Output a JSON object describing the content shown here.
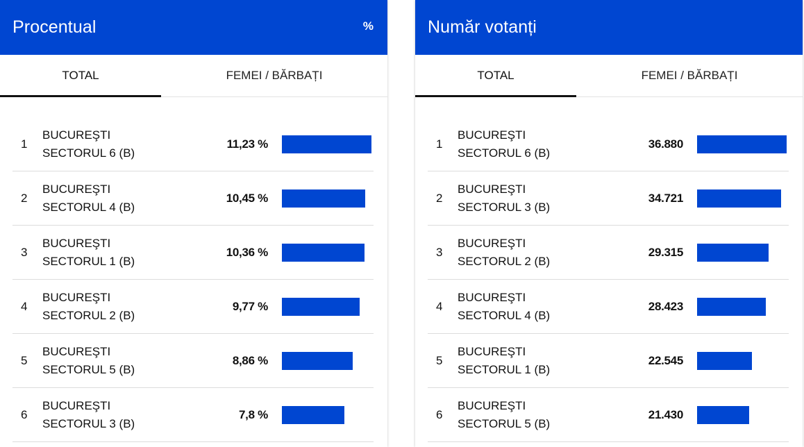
{
  "colors": {
    "accent": "#0046d1"
  },
  "panels": [
    {
      "title": "Procentual",
      "unit": "%",
      "tabs": [
        {
          "label": "TOTAL",
          "active": true
        },
        {
          "label": "FEMEI / BĂRBAȚI",
          "active": false
        }
      ],
      "max": 11.23,
      "rows": [
        {
          "rank": "1",
          "line1": "BUCUREŞTI",
          "line2": "SECTORUL 6 (B)",
          "value": "11,23 %",
          "num": 11.23
        },
        {
          "rank": "2",
          "line1": "BUCUREŞTI",
          "line2": "SECTORUL 4 (B)",
          "value": "10,45 %",
          "num": 10.45
        },
        {
          "rank": "3",
          "line1": "BUCUREŞTI",
          "line2": "SECTORUL 1 (B)",
          "value": "10,36 %",
          "num": 10.36
        },
        {
          "rank": "4",
          "line1": "BUCUREŞTI",
          "line2": "SECTORUL 2 (B)",
          "value": "9,77 %",
          "num": 9.77
        },
        {
          "rank": "5",
          "line1": "BUCUREŞTI",
          "line2": "SECTORUL 5 (B)",
          "value": "8,86 %",
          "num": 8.86
        },
        {
          "rank": "6",
          "line1": "BUCUREŞTI",
          "line2": "SECTORUL 3 (B)",
          "value": "7,8 %",
          "num": 7.8
        }
      ]
    },
    {
      "title": "Număr votanți",
      "unit": "",
      "tabs": [
        {
          "label": "TOTAL",
          "active": true
        },
        {
          "label": "FEMEI / BĂRBAȚI",
          "active": false
        }
      ],
      "max": 36880,
      "rows": [
        {
          "rank": "1",
          "line1": "BUCUREŞTI",
          "line2": "SECTORUL 6 (B)",
          "value": "36.880",
          "num": 36880
        },
        {
          "rank": "2",
          "line1": "BUCUREŞTI",
          "line2": "SECTORUL 3 (B)",
          "value": "34.721",
          "num": 34721
        },
        {
          "rank": "3",
          "line1": "BUCUREŞTI",
          "line2": "SECTORUL 2 (B)",
          "value": "29.315",
          "num": 29315
        },
        {
          "rank": "4",
          "line1": "BUCUREŞTI",
          "line2": "SECTORUL 4 (B)",
          "value": "28.423",
          "num": 28423
        },
        {
          "rank": "5",
          "line1": "BUCUREŞTI",
          "line2": "SECTORUL 1 (B)",
          "value": "22.545",
          "num": 22545
        },
        {
          "rank": "6",
          "line1": "BUCUREŞTI",
          "line2": "SECTORUL 5 (B)",
          "value": "21.430",
          "num": 21430
        }
      ]
    }
  ]
}
